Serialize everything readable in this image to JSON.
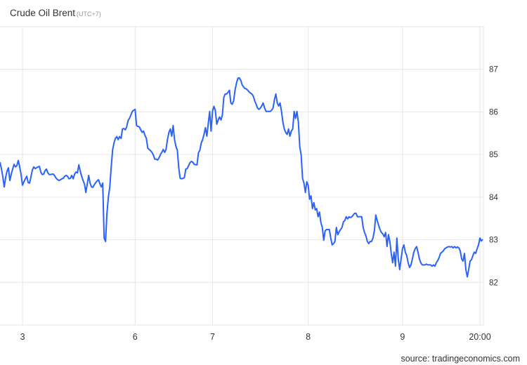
{
  "header": {
    "title": "Crude Oil Brent",
    "timezone": "(UTC+7)"
  },
  "source": "source: tradingeconomics.com",
  "colors": {
    "line": "#2962ff",
    "grid": "#e6e6e6",
    "text": "#333333"
  },
  "chart_data": {
    "type": "line",
    "title": "Crude Oil Brent",
    "ylim": [
      81.0,
      88.0
    ],
    "y_ticks": [
      "82",
      "83",
      "84",
      "85",
      "86",
      "87"
    ],
    "x_ticks": [
      {
        "label": "3",
        "index": 16
      },
      {
        "label": "6",
        "index": 96
      },
      {
        "label": "7",
        "index": 151
      },
      {
        "label": "8",
        "index": 219
      },
      {
        "label": "9",
        "index": 286
      },
      {
        "label": "20:00",
        "index": 341
      }
    ],
    "grid": true,
    "y_axis_side": "right",
    "series": [
      {
        "values": [
          84.82,
          84.67,
          84.48,
          84.24,
          84.46,
          84.61,
          84.69,
          84.39,
          84.54,
          84.66,
          84.77,
          84.71,
          84.74,
          84.86,
          84.71,
          84.53,
          84.28,
          84.36,
          84.43,
          84.49,
          84.34,
          84.33,
          84.48,
          84.64,
          84.71,
          84.67,
          84.69,
          84.71,
          84.72,
          84.59,
          84.53,
          84.54,
          84.62,
          84.66,
          84.57,
          84.53,
          84.53,
          84.54,
          84.54,
          84.49,
          84.44,
          84.41,
          84.39,
          84.41,
          84.43,
          84.44,
          84.49,
          84.51,
          84.49,
          84.43,
          84.44,
          84.51,
          84.43,
          84.54,
          84.59,
          84.57,
          84.76,
          84.61,
          84.49,
          84.39,
          84.31,
          84.11,
          84.31,
          84.51,
          84.33,
          84.24,
          84.23,
          84.29,
          84.34,
          84.38,
          84.41,
          84.31,
          84.24,
          84.33,
          83.04,
          82.96,
          83.62,
          84.0,
          84.23,
          84.69,
          85.1,
          85.27,
          85.38,
          85.42,
          85.35,
          85.42,
          85.38,
          85.6,
          85.61,
          85.58,
          85.65,
          85.8,
          85.85,
          85.93,
          86.01,
          86.04,
          86.06,
          85.68,
          85.66,
          85.65,
          85.58,
          85.52,
          85.55,
          85.45,
          85.38,
          85.15,
          85.12,
          85.09,
          85.05,
          84.99,
          84.89,
          84.89,
          84.87,
          84.92,
          85.0,
          85.05,
          85.12,
          85.05,
          85.12,
          85.35,
          85.52,
          85.6,
          85.43,
          85.68,
          85.35,
          85.19,
          85.1,
          84.69,
          84.44,
          84.43,
          84.44,
          84.46,
          84.66,
          84.67,
          84.74,
          84.81,
          84.84,
          84.82,
          84.77,
          84.76,
          84.76,
          85.04,
          85.1,
          85.27,
          85.35,
          85.48,
          85.63,
          85.43,
          85.73,
          86.01,
          85.55,
          86.01,
          86.13,
          86.04,
          85.71,
          85.81,
          85.88,
          85.81,
          85.93,
          86.34,
          86.42,
          86.42,
          86.46,
          86.51,
          86.21,
          86.18,
          86.26,
          86.51,
          86.67,
          86.79,
          86.8,
          86.75,
          86.64,
          86.59,
          86.55,
          86.54,
          86.51,
          86.47,
          86.44,
          86.42,
          86.37,
          86.26,
          86.18,
          86.09,
          86.06,
          86.09,
          86.14,
          86.21,
          86.09,
          86.01,
          86.01,
          86.01,
          86.01,
          86.04,
          86.09,
          86.29,
          86.42,
          86.21,
          86.14,
          86.21,
          86.01,
          85.76,
          85.6,
          85.52,
          85.47,
          85.6,
          85.43,
          85.55,
          85.6,
          86.01,
          85.85,
          86.01,
          85.76,
          85.19,
          84.99,
          84.44,
          84.33,
          84.11,
          84.36,
          84.28,
          83.95,
          84.03,
          83.73,
          83.87,
          83.7,
          83.73,
          83.54,
          83.65,
          83.4,
          83.29,
          82.99,
          83.21,
          83.24,
          83.24,
          83.24,
          83.04,
          82.88,
          82.91,
          82.96,
          83.29,
          83.12,
          83.19,
          83.24,
          83.29,
          83.42,
          83.45,
          83.54,
          83.49,
          83.54,
          83.52,
          83.54,
          83.58,
          83.62,
          83.62,
          83.54,
          83.54,
          83.54,
          83.54,
          83.29,
          83.17,
          83.09,
          82.96,
          82.91,
          82.96,
          82.96,
          83.04,
          83.21,
          83.58,
          83.45,
          83.34,
          83.24,
          83.17,
          83.14,
          83.07,
          83.17,
          82.84,
          83.12,
          82.96,
          82.68,
          82.46,
          82.71,
          82.38,
          83.04,
          82.55,
          82.3,
          82.55,
          82.79,
          82.88,
          82.71,
          82.63,
          82.46,
          82.35,
          82.41,
          82.55,
          82.71,
          82.79,
          82.84,
          82.71,
          82.55,
          82.46,
          82.41,
          82.41,
          82.41,
          82.43,
          82.41,
          82.41,
          82.41,
          82.38,
          82.41,
          82.38,
          82.46,
          82.51,
          82.58,
          82.68,
          82.71,
          82.74,
          82.79,
          82.81,
          82.83,
          82.84,
          82.83,
          82.84,
          82.81,
          82.84,
          82.81,
          82.83,
          82.81,
          82.74,
          82.55,
          82.5,
          82.68,
          82.3,
          82.13,
          82.3,
          82.5,
          82.53,
          82.63,
          82.71,
          82.68,
          82.79,
          82.88,
          83.04,
          82.97,
          83.01
        ]
      }
    ]
  }
}
